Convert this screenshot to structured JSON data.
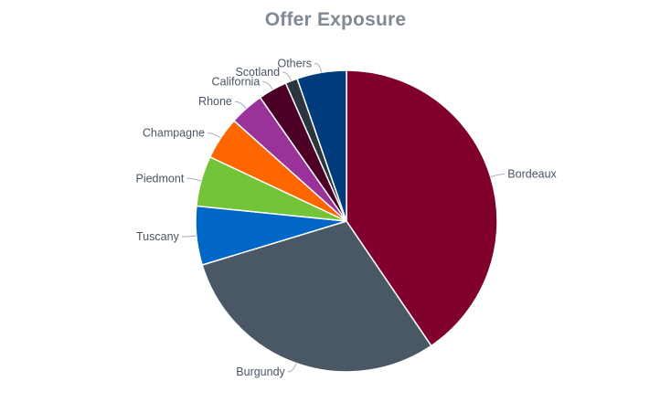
{
  "chart_data": {
    "type": "pie",
    "title": "Offer Exposure",
    "legend": "none",
    "slices": [
      {
        "label": "Bordeaux",
        "value": 40.5,
        "color": "#80002e"
      },
      {
        "label": "Burgundy",
        "value": 29.8,
        "color": "#4a5865"
      },
      {
        "label": "Tuscany",
        "value": 6.3,
        "color": "#0066c7"
      },
      {
        "label": "Piedmont",
        "value": 5.4,
        "color": "#74c43a"
      },
      {
        "label": "Champagne",
        "value": 4.6,
        "color": "#ff6600"
      },
      {
        "label": "Rhone",
        "value": 3.7,
        "color": "#993399"
      },
      {
        "label": "California",
        "value": 3.1,
        "color": "#4d0026"
      },
      {
        "label": "Scotland",
        "value": 1.3,
        "color": "#2a3540"
      },
      {
        "label": "Others",
        "value": 5.3,
        "color": "#003b7b"
      }
    ]
  }
}
